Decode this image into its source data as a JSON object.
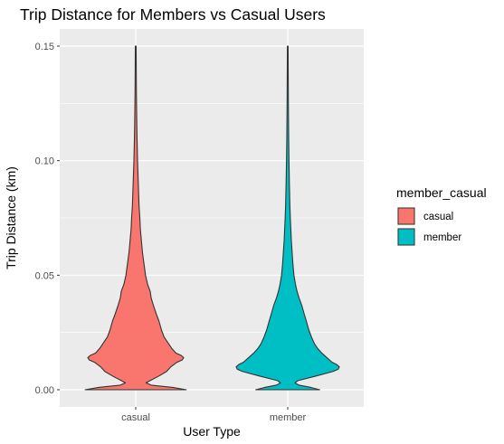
{
  "chart_data": {
    "type": "violin",
    "title": "Trip Distance for Members vs Casual Users",
    "xlabel": "User Type",
    "ylabel": "Trip Distance (km)",
    "ylim": [
      -0.0075,
      0.1575
    ],
    "yticks": [
      "0.00",
      "0.05",
      "0.10",
      "0.15"
    ],
    "categories": [
      "casual",
      "member"
    ],
    "grid": true,
    "legend": {
      "title": "member_casual",
      "position": "right",
      "items": [
        "casual",
        "member"
      ]
    },
    "colors": {
      "casual": "#F8766D",
      "member": "#00BFC4"
    },
    "series": [
      {
        "name": "casual",
        "range": [
          0.0,
          0.15
        ],
        "density_profile": [
          [
            0.0,
            0.98
          ],
          [
            0.001,
            0.72
          ],
          [
            0.002,
            0.3
          ],
          [
            0.003,
            0.2
          ],
          [
            0.004,
            0.28
          ],
          [
            0.006,
            0.45
          ],
          [
            0.008,
            0.6
          ],
          [
            0.01,
            0.68
          ],
          [
            0.012,
            0.8
          ],
          [
            0.013,
            0.9
          ],
          [
            0.014,
            0.93
          ],
          [
            0.015,
            0.88
          ],
          [
            0.016,
            0.78
          ],
          [
            0.018,
            0.7
          ],
          [
            0.02,
            0.64
          ],
          [
            0.023,
            0.55
          ],
          [
            0.026,
            0.5
          ],
          [
            0.03,
            0.45
          ],
          [
            0.033,
            0.4
          ],
          [
            0.037,
            0.34
          ],
          [
            0.04,
            0.3
          ],
          [
            0.043,
            0.28
          ],
          [
            0.046,
            0.23
          ],
          [
            0.05,
            0.19
          ],
          [
            0.055,
            0.16
          ],
          [
            0.06,
            0.13
          ],
          [
            0.065,
            0.11
          ],
          [
            0.07,
            0.09
          ],
          [
            0.075,
            0.08
          ],
          [
            0.08,
            0.065
          ],
          [
            0.09,
            0.05
          ],
          [
            0.1,
            0.035
          ],
          [
            0.11,
            0.025
          ],
          [
            0.12,
            0.018
          ],
          [
            0.13,
            0.013
          ],
          [
            0.14,
            0.01
          ],
          [
            0.15,
            0.008
          ]
        ]
      },
      {
        "name": "member",
        "range": [
          0.0,
          0.15
        ],
        "density_profile": [
          [
            0.0,
            0.62
          ],
          [
            0.001,
            0.45
          ],
          [
            0.002,
            0.22
          ],
          [
            0.003,
            0.14
          ],
          [
            0.004,
            0.2
          ],
          [
            0.006,
            0.55
          ],
          [
            0.008,
            0.88
          ],
          [
            0.009,
            0.98
          ],
          [
            0.01,
            1.0
          ],
          [
            0.011,
            0.95
          ],
          [
            0.012,
            0.86
          ],
          [
            0.014,
            0.76
          ],
          [
            0.016,
            0.66
          ],
          [
            0.018,
            0.58
          ],
          [
            0.02,
            0.52
          ],
          [
            0.023,
            0.46
          ],
          [
            0.026,
            0.41
          ],
          [
            0.03,
            0.36
          ],
          [
            0.033,
            0.32
          ],
          [
            0.037,
            0.27
          ],
          [
            0.04,
            0.22
          ],
          [
            0.043,
            0.18
          ],
          [
            0.046,
            0.15
          ],
          [
            0.05,
            0.12
          ],
          [
            0.055,
            0.1
          ],
          [
            0.06,
            0.085
          ],
          [
            0.065,
            0.07
          ],
          [
            0.07,
            0.06
          ],
          [
            0.075,
            0.05
          ],
          [
            0.08,
            0.042
          ],
          [
            0.09,
            0.032
          ],
          [
            0.1,
            0.024
          ],
          [
            0.11,
            0.018
          ],
          [
            0.12,
            0.014
          ],
          [
            0.13,
            0.011
          ],
          [
            0.14,
            0.009
          ],
          [
            0.15,
            0.007
          ]
        ]
      }
    ]
  }
}
